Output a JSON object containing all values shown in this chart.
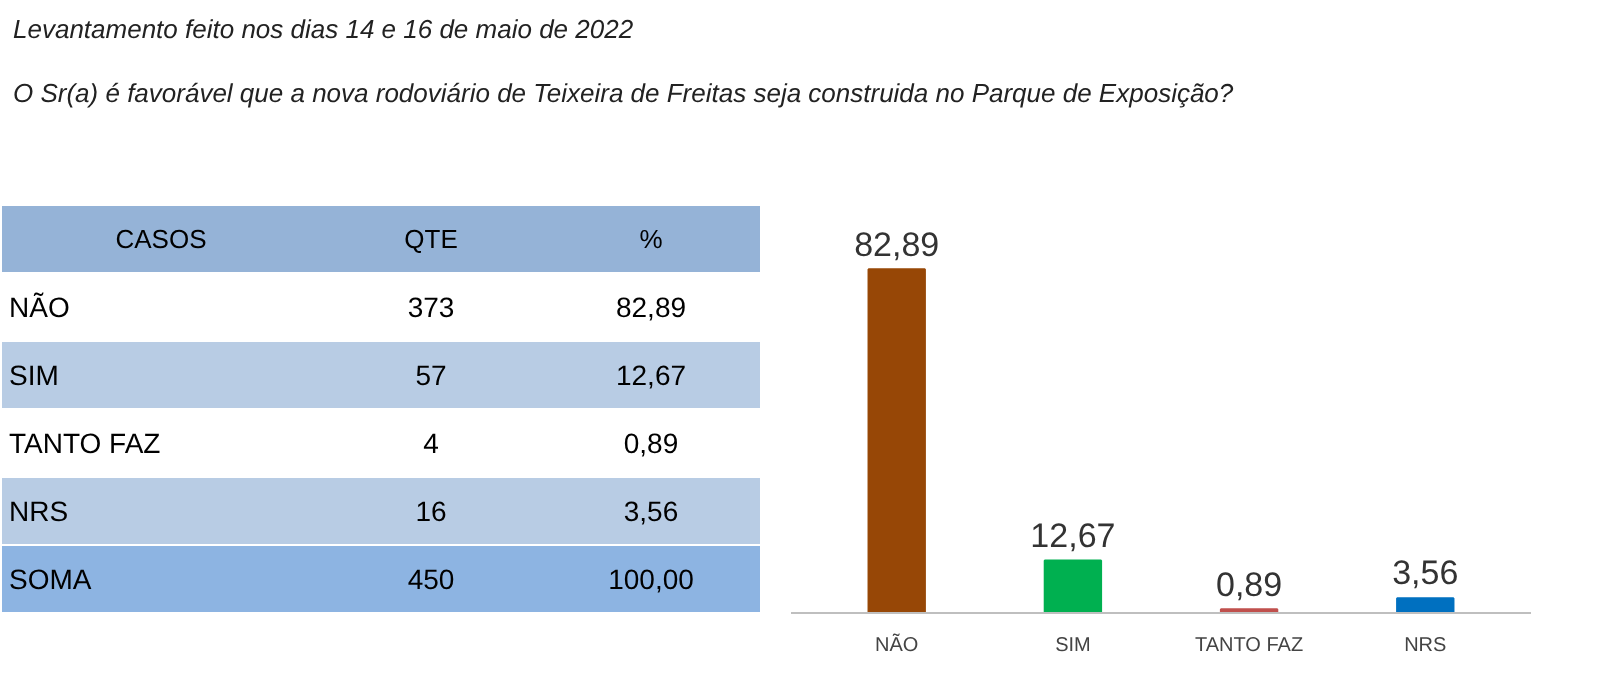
{
  "chart_data": [
    {
      "type": "other",
      "title": "Levantamento feito nos dias 14 e 16 de maio de 2022",
      "subtitle": "O Sr(a) é favorável que a nova rodoviário de Teixeira de Freitas seja construida no Parque de Exposição?",
      "annotations": [
        "CASOS",
        "QTE",
        "%",
        "NÃO",
        "373",
        "82,89",
        "SIM",
        "57",
        "12,67",
        "TANTO FAZ",
        "4",
        "0,89",
        "NRS",
        "16",
        "3,56",
        "SOMA",
        "450",
        "100,00"
      ]
    },
    {
      "type": "bar",
      "categories": [
        "NÃO",
        "SIM",
        "TANTO FAZ",
        "NRS"
      ],
      "values": [
        82.89,
        12.67,
        0.89,
        3.56
      ],
      "colors": [
        "#974706",
        "#00b050",
        "#c0504d",
        "#0070c0"
      ],
      "value_labels": [
        "82,89",
        "12,67",
        "0,89",
        "3,56"
      ]
    }
  ]
}
